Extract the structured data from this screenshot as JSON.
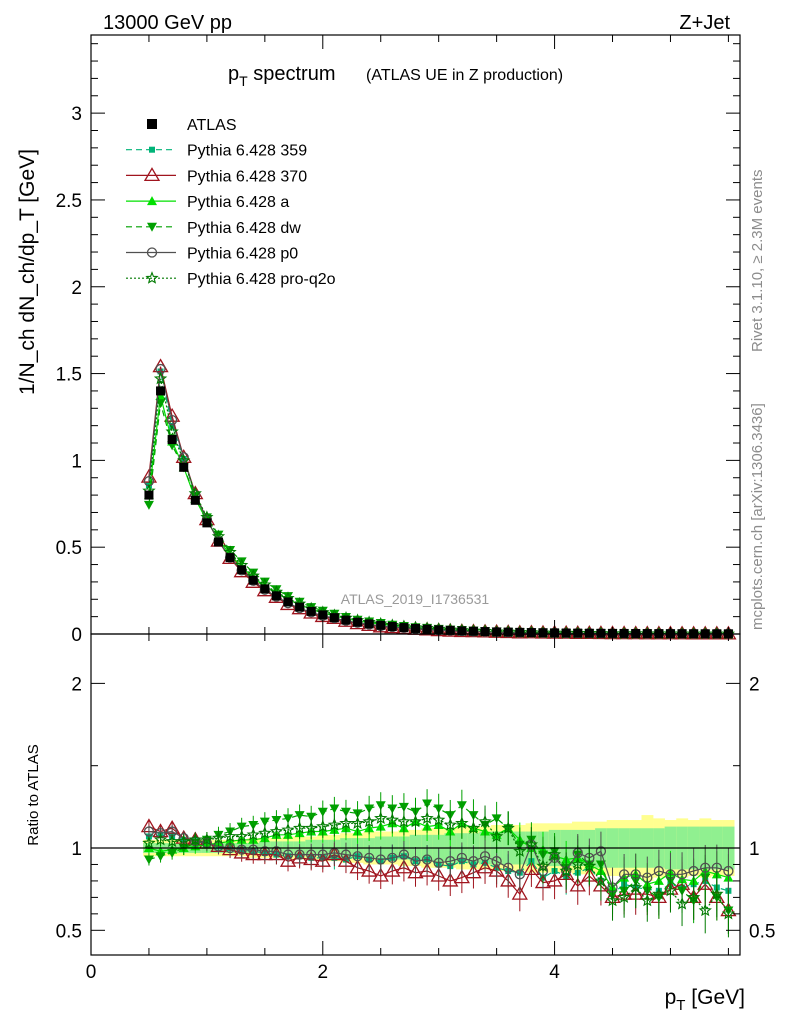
{
  "header": {
    "left": "13000 GeV pp",
    "right": "Z+Jet"
  },
  "side_labels": {
    "rivet": "Rivet 3.1.10, ≥ 2.3M events",
    "mcplots": "mcplots.cern.ch [arXiv:1306.3436]"
  },
  "watermark": "ATLAS_2019_I1736531",
  "colors": {
    "atlas": "#000000",
    "p359": "#00b478",
    "p370": "#a0141e",
    "pa": "#00e000",
    "pdw": "#00a000",
    "pp0": "#505050",
    "pq2o": "#007a00",
    "band_inner": "#90f090",
    "band_outer": "#ffff90"
  },
  "chart_data": [
    {
      "type": "line",
      "title": "p_T spectrum",
      "title_main": "p",
      "title_sub": "T",
      "title_rest": " spectrum",
      "title_note": "(ATLAS UE in Z production)",
      "ylabel": "1/N_ch dN_ch/dp_T [GeV]",
      "xlim": [
        0,
        5.6
      ],
      "ylim": [
        0,
        3.45
      ],
      "yticks": [
        0,
        0.5,
        1,
        1.5,
        2,
        2.5,
        3
      ],
      "yticklabels": [
        "0",
        "0.5",
        "1",
        "1.5",
        "2",
        "2.5",
        "3"
      ],
      "legend_position": "top-left",
      "x": [
        0.5,
        0.6,
        0.7,
        0.8,
        0.9,
        1.0,
        1.1,
        1.2,
        1.3,
        1.4,
        1.5,
        1.6,
        1.7,
        1.8,
        1.9,
        2.0,
        2.1,
        2.2,
        2.3,
        2.4,
        2.5,
        2.6,
        2.7,
        2.8,
        2.9,
        3.0,
        3.1,
        3.2,
        3.3,
        3.4,
        3.5,
        3.6,
        3.7,
        3.8,
        3.9,
        4.0,
        4.1,
        4.2,
        4.3,
        4.4,
        4.5,
        4.6,
        4.7,
        4.8,
        4.9,
        5.0,
        5.1,
        5.2,
        5.3,
        5.4,
        5.5
      ],
      "atlas": [
        0.8,
        1.4,
        1.12,
        0.96,
        0.77,
        0.64,
        0.53,
        0.44,
        0.37,
        0.31,
        0.26,
        0.22,
        0.185,
        0.155,
        0.13,
        0.11,
        0.094,
        0.08,
        0.068,
        0.058,
        0.05,
        0.043,
        0.037,
        0.032,
        0.028,
        0.024,
        0.021,
        0.018,
        0.016,
        0.014,
        0.012,
        0.011,
        0.0095,
        0.0084,
        0.0074,
        0.0065,
        0.0058,
        0.0051,
        0.0045,
        0.004,
        0.0036,
        0.0032,
        0.0029,
        0.0026,
        0.0023,
        0.0021,
        0.0019,
        0.0017,
        0.0015,
        0.0014,
        0.0012
      ],
      "series": [
        {
          "name": "ATLAS",
          "key": "atlas",
          "style": "square",
          "dash": ""
        },
        {
          "name": "Pythia 6.428 359",
          "key": "p359",
          "style": "smallsquare",
          "dash": "6,4"
        },
        {
          "name": "Pythia 6.428 370",
          "key": "p370",
          "style": "triangle-open",
          "dash": ""
        },
        {
          "name": "Pythia 6.428 a",
          "key": "pa",
          "style": "triangle",
          "dash": ""
        },
        {
          "name": "Pythia 6.428 dw",
          "key": "pdw",
          "style": "triangle-down",
          "dash": "6,4"
        },
        {
          "name": "Pythia 6.428 p0",
          "key": "pp0",
          "style": "circle-open",
          "dash": ""
        },
        {
          "name": "Pythia 6.428 pro-q2o",
          "key": "pq2o",
          "style": "star",
          "dash": "2,2"
        }
      ]
    },
    {
      "type": "line",
      "xlabel": "p_T [GeV]",
      "xlabel_main": "p",
      "xlabel_sub": "T",
      "xlabel_rest": " [GeV]",
      "ylabel": "Ratio to ATLAS",
      "xlim": [
        0,
        5.6
      ],
      "ylim": [
        0.35,
        2.3
      ],
      "xticks": [
        0,
        2,
        4
      ],
      "xticklabels": [
        "0",
        "2",
        "4"
      ],
      "yticks": [
        0.5,
        1,
        2
      ],
      "yticklabels": [
        "0.5",
        "1",
        "2"
      ],
      "reference": 1,
      "x": [
        0.5,
        0.6,
        0.7,
        0.8,
        0.9,
        1.0,
        1.1,
        1.2,
        1.3,
        1.4,
        1.5,
        1.6,
        1.7,
        1.8,
        1.9,
        2.0,
        2.1,
        2.2,
        2.3,
        2.4,
        2.5,
        2.6,
        2.7,
        2.8,
        2.9,
        3.0,
        3.1,
        3.2,
        3.3,
        3.4,
        3.5,
        3.6,
        3.7,
        3.8,
        3.9,
        4.0,
        4.1,
        4.2,
        4.3,
        4.4,
        4.5,
        4.6,
        4.7,
        4.8,
        4.9,
        5.0,
        5.1,
        5.2,
        5.3,
        5.4,
        5.5
      ],
      "band_inner": [
        0.03,
        0.03,
        0.03,
        0.03,
        0.03,
        0.03,
        0.03,
        0.03,
        0.03,
        0.03,
        0.04,
        0.04,
        0.04,
        0.04,
        0.05,
        0.05,
        0.05,
        0.06,
        0.06,
        0.06,
        0.07,
        0.07,
        0.07,
        0.08,
        0.08,
        0.08,
        0.09,
        0.09,
        0.09,
        0.1,
        0.1,
        0.1,
        0.1,
        0.1,
        0.1,
        0.11,
        0.11,
        0.11,
        0.11,
        0.12,
        0.12,
        0.12,
        0.12,
        0.12,
        0.12,
        0.13,
        0.13,
        0.13,
        0.13,
        0.13,
        0.13
      ],
      "band_outer": [
        0.05,
        0.05,
        0.05,
        0.05,
        0.05,
        0.05,
        0.05,
        0.05,
        0.05,
        0.06,
        0.06,
        0.06,
        0.07,
        0.07,
        0.07,
        0.08,
        0.08,
        0.09,
        0.09,
        0.1,
        0.1,
        0.1,
        0.11,
        0.11,
        0.12,
        0.12,
        0.12,
        0.13,
        0.13,
        0.13,
        0.14,
        0.14,
        0.14,
        0.15,
        0.15,
        0.15,
        0.15,
        0.16,
        0.16,
        0.16,
        0.17,
        0.17,
        0.17,
        0.2,
        0.18,
        0.17,
        0.18,
        0.17,
        0.18,
        0.17,
        0.17
      ],
      "series": [
        {
          "name": "Pythia 6.428 359",
          "key": "p359",
          "values": [
            1.07,
            1.08,
            1.07,
            1.05,
            1.04,
            1.03,
            1.01,
            1.0,
            0.99,
            0.98,
            0.97,
            0.96,
            0.95,
            0.95,
            0.94,
            0.94,
            0.94,
            0.93,
            0.95,
            0.93,
            0.92,
            0.94,
            0.95,
            0.92,
            0.93,
            0.9,
            0.89,
            0.92,
            0.9,
            0.91,
            0.88,
            0.86,
            0.85,
            0.92,
            0.82,
            0.86,
            0.83,
            0.85,
            0.88,
            0.8,
            0.72,
            0.78,
            0.76,
            0.75,
            0.74,
            0.78,
            0.76,
            0.78,
            0.8,
            0.76,
            0.74
          ]
        },
        {
          "name": "Pythia 6.428 370",
          "key": "p370",
          "values": [
            1.13,
            1.1,
            1.12,
            1.06,
            1.05,
            1.03,
            1.01,
            0.99,
            0.97,
            0.96,
            0.96,
            0.96,
            0.92,
            0.94,
            0.93,
            0.92,
            0.96,
            0.92,
            0.88,
            0.86,
            0.83,
            0.86,
            0.88,
            0.85,
            0.86,
            0.83,
            0.8,
            0.82,
            0.85,
            0.88,
            0.86,
            0.8,
            0.72,
            0.87,
            0.79,
            0.8,
            0.84,
            0.77,
            0.83,
            0.77,
            0.7,
            0.72,
            0.72,
            0.72,
            0.7,
            0.75,
            0.78,
            0.7,
            0.78,
            0.7,
            0.62
          ]
        },
        {
          "name": "Pythia 6.428 a",
          "key": "pa",
          "values": [
            1.0,
            0.98,
            0.99,
            1.0,
            1.01,
            1.02,
            1.03,
            1.04,
            1.05,
            1.05,
            1.06,
            1.08,
            1.08,
            1.09,
            1.1,
            1.1,
            1.11,
            1.12,
            1.1,
            1.12,
            1.13,
            1.15,
            1.12,
            1.16,
            1.13,
            1.14,
            1.1,
            1.15,
            1.12,
            1.1,
            1.08,
            1.12,
            1.05,
            1.0,
            0.99,
            0.95,
            0.93,
            0.94,
            0.9,
            0.86,
            0.76,
            0.82,
            0.84,
            0.78,
            0.8,
            0.85,
            0.81,
            0.8,
            0.86,
            0.84,
            0.82
          ]
        },
        {
          "name": "Pythia 6.428 dw",
          "key": "pdw",
          "values": [
            0.93,
            0.95,
            0.97,
            1.0,
            1.03,
            1.05,
            1.08,
            1.1,
            1.13,
            1.14,
            1.16,
            1.17,
            1.18,
            1.2,
            1.19,
            1.22,
            1.24,
            1.22,
            1.21,
            1.24,
            1.26,
            1.24,
            1.25,
            1.22,
            1.27,
            1.24,
            1.2,
            1.26,
            1.2,
            1.14,
            1.18,
            1.12,
            1.02,
            1.05,
            0.96,
            0.98,
            0.88,
            0.96,
            0.9,
            0.9,
            0.72,
            0.74,
            0.8,
            0.74,
            0.7,
            0.8,
            0.74,
            0.68,
            0.82,
            0.7,
            0.62
          ]
        },
        {
          "name": "Pythia 6.428 p0",
          "key": "pp0",
          "values": [
            1.1,
            1.09,
            1.1,
            1.06,
            1.04,
            1.03,
            1.01,
            1.0,
            0.99,
            0.99,
            0.98,
            0.98,
            0.96,
            0.96,
            0.96,
            0.96,
            0.97,
            0.96,
            0.95,
            0.94,
            0.93,
            0.94,
            0.96,
            0.92,
            0.93,
            0.91,
            0.92,
            0.94,
            0.92,
            0.95,
            0.92,
            0.88,
            0.84,
            1.02,
            0.86,
            0.94,
            0.86,
            0.97,
            0.94,
            0.98,
            0.76,
            0.84,
            0.84,
            0.82,
            0.86,
            0.84,
            0.84,
            0.86,
            0.88,
            0.88,
            0.86
          ]
        },
        {
          "name": "Pythia 6.428 pro-q2o",
          "key": "pq2o",
          "values": [
            1.03,
            1.05,
            1.04,
            1.04,
            1.05,
            1.05,
            1.06,
            1.07,
            1.07,
            1.08,
            1.09,
            1.1,
            1.11,
            1.12,
            1.12,
            1.13,
            1.14,
            1.15,
            1.15,
            1.16,
            1.18,
            1.17,
            1.16,
            1.16,
            1.18,
            1.17,
            1.14,
            1.15,
            1.12,
            1.16,
            1.07,
            1.12,
            0.98,
            1.02,
            0.89,
            0.96,
            0.86,
            0.9,
            0.89,
            0.8,
            0.68,
            0.7,
            0.76,
            0.68,
            0.72,
            0.74,
            0.66,
            0.7,
            0.62,
            0.72,
            0.6
          ]
        }
      ]
    }
  ]
}
